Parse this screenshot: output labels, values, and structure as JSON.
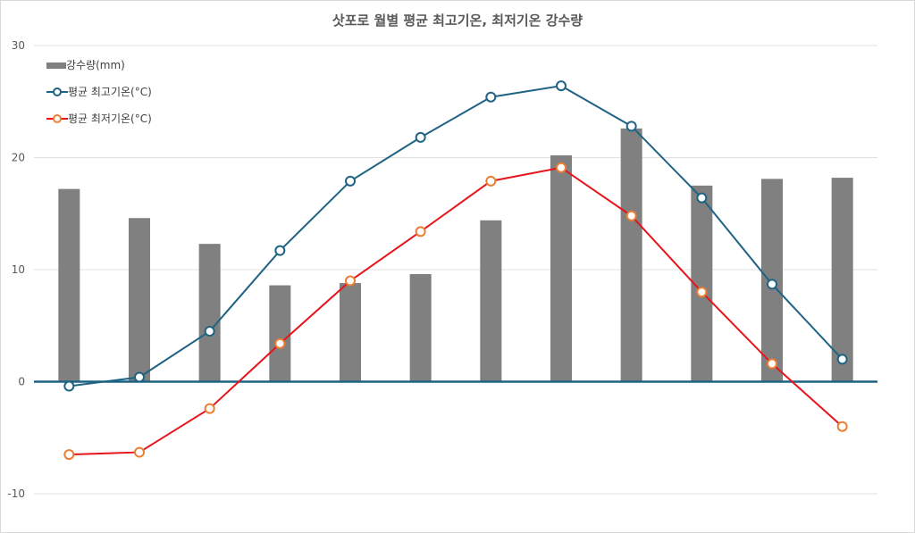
{
  "chart_data": {
    "type": "bar+line",
    "title": "삿포로 월별 평균 최고기온, 최저기온 강수량",
    "ylim": [
      -10,
      30
    ],
    "yticks": [
      "-10",
      "0",
      "10",
      "20",
      "30"
    ],
    "grid": true,
    "legend_position": "top-left",
    "series": [
      {
        "name": "강수량(mm)",
        "type": "bar",
        "color": "#808080",
        "values": [
          17.2,
          14.6,
          12.3,
          8.6,
          8.8,
          9.6,
          14.4,
          20.2,
          22.6,
          17.5,
          18.1,
          18.2
        ]
      },
      {
        "name": "평균 최고기온(°C)",
        "type": "line",
        "color": "#1f6384",
        "marker_edge": "#1f6384",
        "values": [
          -0.4,
          0.4,
          4.5,
          11.7,
          17.9,
          21.8,
          25.4,
          26.4,
          22.8,
          16.4,
          8.7,
          2.0
        ]
      },
      {
        "name": "평균 최저기온(°C)",
        "type": "line",
        "color": "#e8141c",
        "marker_edge": "#ed7d31",
        "values": [
          -6.5,
          -6.3,
          -2.4,
          3.4,
          9.0,
          13.4,
          17.9,
          19.1,
          14.8,
          8.0,
          1.6,
          -4.0
        ]
      }
    ]
  }
}
